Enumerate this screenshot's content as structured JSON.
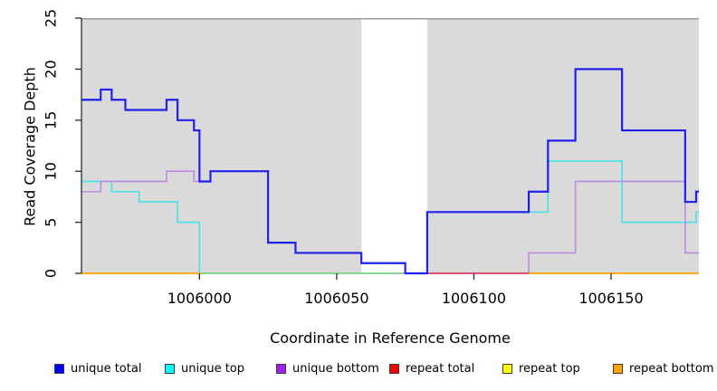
{
  "chart_data": {
    "type": "line",
    "subtype": "step",
    "title": "",
    "xlabel": "Coordinate in Reference Genome",
    "ylabel": "Read Coverage Depth",
    "x_range": [
      1005957,
      1006182
    ],
    "ylim": [
      0,
      25
    ],
    "x_ticks": [
      1006000,
      1006050,
      1006100,
      1006150
    ],
    "y_ticks": [
      0,
      5,
      10,
      15,
      20,
      25
    ],
    "grid": "off",
    "legend_position": "bottom",
    "background": "#FFFFFF",
    "axis_color": "#2B2B2B",
    "top_border_color": "#9C9C9C",
    "shaded_regions": [
      {
        "from": 1005957,
        "to": 1006059,
        "color": "#DADADA"
      },
      {
        "from": 1006083,
        "to": 1006182,
        "color": "#DADADA"
      }
    ],
    "series": [
      {
        "name": "unique total",
        "legend_color": "#0000FF",
        "color": "#2121EB",
        "width": 2.2,
        "steps": [
          [
            1005957,
            17
          ],
          [
            1005964,
            18
          ],
          [
            1005968,
            17
          ],
          [
            1005973,
            16
          ],
          [
            1005988,
            17
          ],
          [
            1005992,
            15
          ],
          [
            1005998,
            14
          ],
          [
            1006000,
            9
          ],
          [
            1006004,
            10
          ],
          [
            1006025,
            3
          ],
          [
            1006035,
            2
          ],
          [
            1006059,
            1
          ],
          [
            1006075,
            0
          ],
          [
            1006083,
            6
          ],
          [
            1006120,
            8
          ],
          [
            1006127,
            13
          ],
          [
            1006137,
            20
          ],
          [
            1006154,
            14
          ],
          [
            1006177,
            7
          ],
          [
            1006181,
            8
          ]
        ]
      },
      {
        "name": "unique top",
        "legend_color": "#00FFFF",
        "color": "#45E2E8",
        "width": 1.6,
        "steps": [
          [
            1005957,
            9
          ],
          [
            1005968,
            8
          ],
          [
            1005978,
            7
          ],
          [
            1005992,
            5
          ],
          [
            1006000,
            0
          ],
          [
            1006083,
            6
          ],
          [
            1006127,
            11
          ],
          [
            1006154,
            5
          ],
          [
            1006181,
            6
          ]
        ]
      },
      {
        "name": "unique bottom",
        "legend_color": "#A020F0",
        "color": "#BD8BE0",
        "width": 1.6,
        "steps": [
          [
            1005957,
            8
          ],
          [
            1005964,
            9
          ],
          [
            1005988,
            10
          ],
          [
            1005998,
            9
          ],
          [
            1006004,
            10
          ],
          [
            1006025,
            3
          ],
          [
            1006035,
            2
          ],
          [
            1006059,
            1
          ],
          [
            1006075,
            0
          ],
          [
            1006120,
            2
          ],
          [
            1006137,
            9
          ],
          [
            1006177,
            2
          ]
        ]
      },
      {
        "name": "repeat total",
        "legend_color": "#FF0000",
        "color": "#FF0000",
        "width": 1.6,
        "steps": [
          [
            1005957,
            0
          ]
        ]
      },
      {
        "name": "repeat top",
        "legend_color": "#FFFF00",
        "color": "#FFFF00",
        "width": 1.6,
        "steps": [
          [
            1005957,
            0
          ]
        ]
      },
      {
        "name": "repeat bottom",
        "legend_color": "#FFA500",
        "color": "#FFA500",
        "width": 1.6,
        "steps": [
          [
            1005957,
            0
          ]
        ]
      }
    ],
    "baseline_segments": [
      {
        "from": 1005957,
        "to": 1006000,
        "color": "#FFA500"
      },
      {
        "from": 1006000,
        "to": 1006075,
        "color": "#8CCE8C"
      },
      {
        "from": 1006083,
        "to": 1006120,
        "color": "#DC4466"
      },
      {
        "from": 1006120,
        "to": 1006182,
        "color": "#FFA500"
      }
    ]
  }
}
